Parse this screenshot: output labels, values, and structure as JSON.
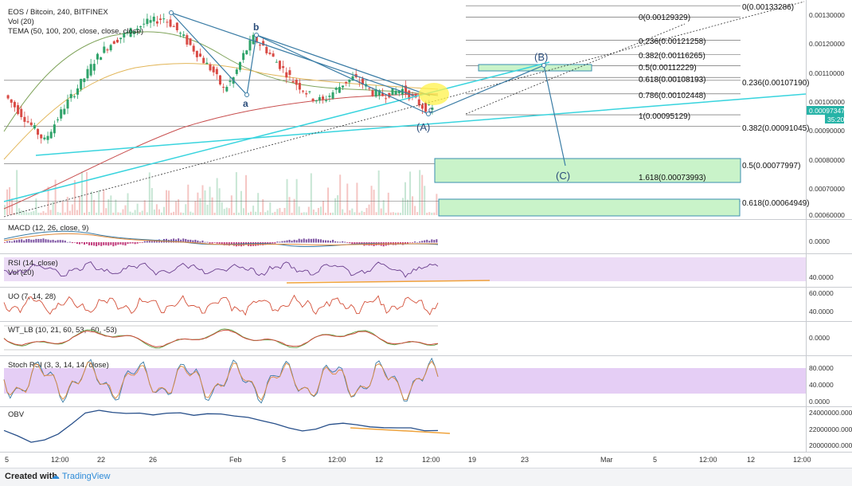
{
  "chart_data": {
    "type": "line",
    "title": "EOS / Bitcoin, 240, BITFINEX",
    "indicator_labels": {
      "vol": "Vol (20)",
      "tema": "TEMA (50, 100, 200, close, close, close)",
      "macd": "MACD (12, 26, close, 9)",
      "rsi": "RSI (14, close)",
      "rsi_vol": "Vol (20)",
      "uo": "UO (7, 14, 28)",
      "wt": "WT_LB (10, 21, 60, 53, -60, -53)",
      "stoch": "Stoch RSI (3, 3, 14, 14, close)",
      "obv": "OBV"
    },
    "y_ticks": [
      "0.00130000",
      "0.00120000",
      "0.00110000",
      "0.00100000",
      "0.00090000",
      "0.00080000",
      "0.00070000",
      "0.00060000"
    ],
    "current_price": "0.00097347",
    "countdown": "35:20",
    "fib_retracement": [
      {
        "label": "0(0.00129329)",
        "value": 0.00129329
      },
      {
        "label": "0.236(0.00121258)",
        "value": 0.00121258
      },
      {
        "label": "0.382(0.00116265)",
        "value": 0.00116265
      },
      {
        "label": "0.5(0.00112229)",
        "value": 0.00112229
      },
      {
        "label": "0.618(0.00108193)",
        "value": 0.00108193
      },
      {
        "label": "0.786(0.00102448)",
        "value": 0.00102448
      },
      {
        "label": "1(0.00095129)",
        "value": 0.00095129
      },
      {
        "label": "1.618(0.00073993)",
        "value": 0.00073993
      }
    ],
    "fib_extension": [
      {
        "label": "0(0.00133286)",
        "value": 0.00133286
      },
      {
        "label": "0.236(0.00107190)",
        "value": 0.0010719
      },
      {
        "label": "0.382(0.00091045)",
        "value": 0.00091045
      },
      {
        "label": "0.5(0.00077997)",
        "value": 0.00077997
      },
      {
        "label": "0.618(0.00064949)",
        "value": 0.00064949
      }
    ],
    "wave_labels": [
      "a",
      "b",
      "c",
      "(A)",
      "(B)",
      "(C)"
    ],
    "x_ticks": [
      "5",
      "12:00",
      "22",
      "26",
      "Feb",
      "5",
      "12:00",
      "12",
      "12:00",
      "19",
      "23",
      "Mar",
      "5",
      "12:00",
      "12",
      "12:00"
    ],
    "indicator_ticks": {
      "macd": [
        "0.0000"
      ],
      "rsi": [
        "40.0000"
      ],
      "uo": [
        "60.0000",
        "40.0000"
      ],
      "wt": [
        "0.0000"
      ],
      "stoch": [
        "80.0000",
        "40.0000",
        "0.0000"
      ],
      "obv": [
        "24000000.0000",
        "22000000.0000",
        "20000000.0000"
      ]
    },
    "price_ylim": [
      0.0006,
      0.00135
    ],
    "price_series_approx": [
      0.00102,
      0.00098,
      0.00094,
      0.0009,
      0.00086,
      0.00092,
      0.00098,
      0.00103,
      0.00108,
      0.00114,
      0.00118,
      0.00121,
      0.00123,
      0.00125,
      0.00127,
      0.00128,
      0.00129,
      0.00126,
      0.00122,
      0.00118,
      0.00114,
      0.0011,
      0.00104,
      0.00108,
      0.00116,
      0.00122,
      0.00119,
      0.00115,
      0.00111,
      0.00107,
      0.00104,
      0.00101,
      0.001,
      0.00103,
      0.00106,
      0.00108,
      0.00106,
      0.00103,
      0.00102,
      0.00103,
      0.00104,
      0.00101,
      0.00098,
      0.00097
    ],
    "obv_series_approx": [
      21.8,
      21.2,
      20.3,
      20.6,
      21.5,
      22.8,
      24.0,
      24.3,
      24.2,
      24.1,
      24.0,
      23.9,
      24.1,
      24.0,
      23.8,
      23.9,
      24.0,
      23.7,
      23.5,
      23.2,
      22.8,
      22.1,
      21.9,
      22.0,
      22.6,
      22.7,
      22.5,
      22.4,
      22.3,
      22.2,
      22.1,
      21.9,
      21.8
    ]
  },
  "footer": {
    "created_with": "Created with",
    "brand": "TradingView"
  }
}
